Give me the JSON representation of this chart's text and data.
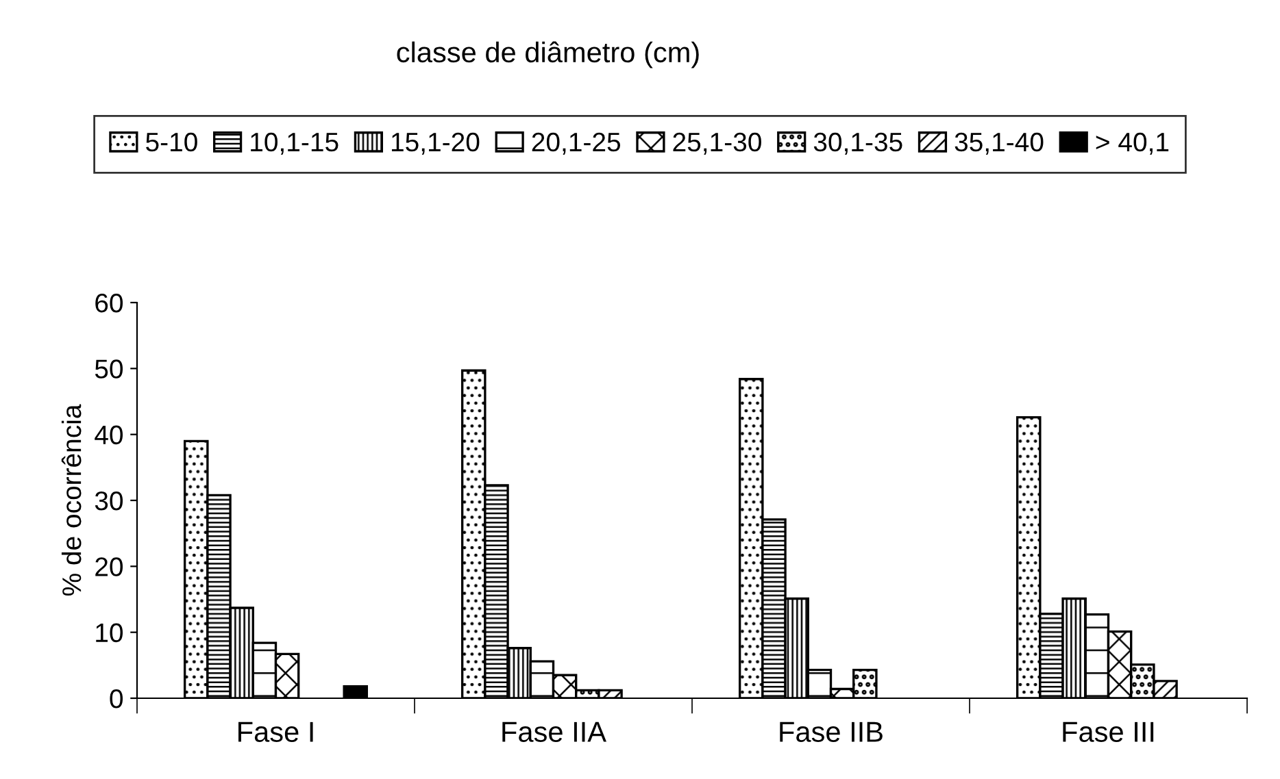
{
  "chart_data": {
    "type": "bar",
    "legend_title": "classe de diâmetro (cm)",
    "ylabel": "% de ocorrência",
    "categories": [
      "Fase I",
      "Fase IIA",
      "Fase IIB",
      "Fase III"
    ],
    "series": [
      {
        "name": "5-10",
        "color": "#000000",
        "values": [
          39,
          49.7,
          48.4,
          42.6
        ]
      },
      {
        "name": "10,1-15",
        "color": "#000000",
        "values": [
          30.8,
          32.3,
          27.1,
          12.8
        ]
      },
      {
        "name": "15,1-20",
        "color": "#000000",
        "values": [
          13.7,
          7.6,
          15.1,
          15.1
        ]
      },
      {
        "name": "20,1-25",
        "color": "#000000",
        "values": [
          8.4,
          5.6,
          4.3,
          12.7
        ]
      },
      {
        "name": "25,1-30",
        "color": "#000000",
        "values": [
          6.7,
          3.5,
          1.4,
          10.1
        ]
      },
      {
        "name": "30,1-35",
        "color": "#000000",
        "values": [
          null,
          1.2,
          4.3,
          5.1
        ]
      },
      {
        "name": "35,1-40",
        "color": "#000000",
        "values": [
          null,
          1.2,
          null,
          2.6
        ]
      },
      {
        "name": "> 40,1",
        "color": "#000000",
        "values": [
          1.8,
          null,
          null,
          null
        ]
      }
    ],
    "ylim": [
      0,
      60
    ],
    "yticks": [
      0,
      10,
      20,
      30,
      40,
      50,
      60
    ],
    "grid": false,
    "legend": "top"
  }
}
